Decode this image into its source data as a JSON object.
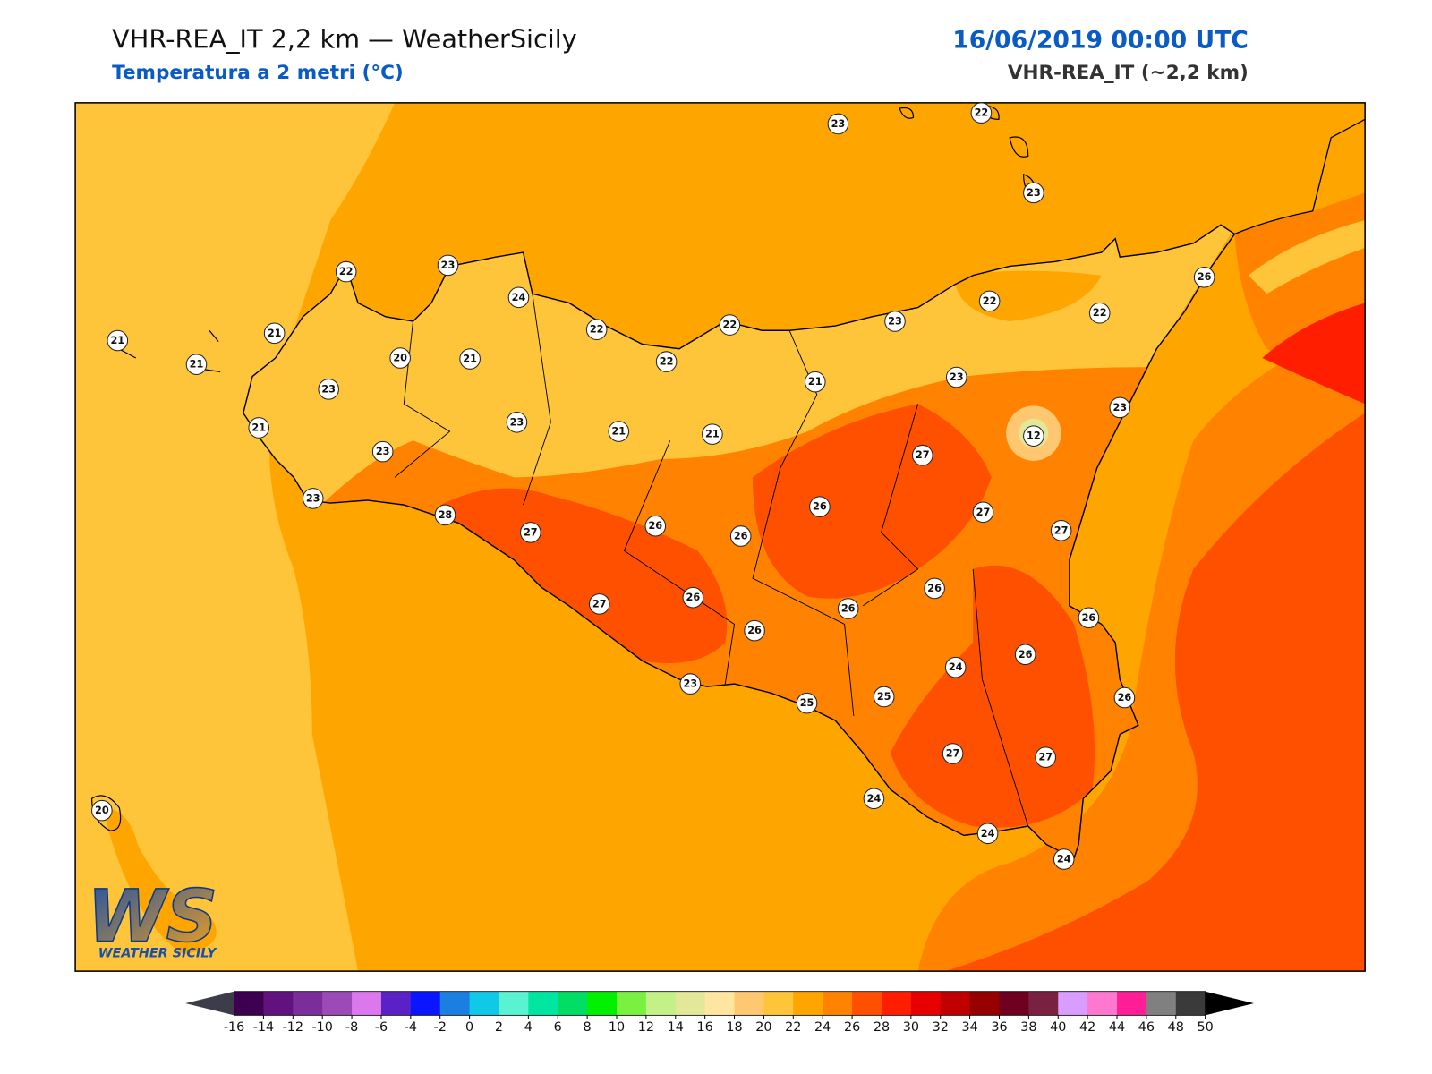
{
  "header": {
    "title": "VHR-REA_IT 2,2 km — WeatherSicily",
    "subtitle": "Temperatura a 2 metri (°C)",
    "datetime": "16/06/2019 00:00 UTC",
    "model": "VHR-REA_IT (~2,2 km)"
  },
  "stations": [
    23,
    22,
    23,
    22,
    23,
    24,
    26,
    21,
    21,
    21,
    20,
    21,
    22,
    22,
    23,
    22,
    22,
    22,
    21,
    23,
    23,
    23,
    21,
    23,
    21,
    21,
    12,
    23,
    27,
    23,
    26,
    27,
    28,
    27,
    26,
    26,
    27,
    26,
    27,
    26,
    26,
    26,
    26,
    26,
    24,
    23,
    25,
    25,
    26,
    27,
    27,
    24,
    20,
    24,
    24
  ],
  "colorbar": {
    "ticks": [
      -16,
      -14,
      -12,
      -10,
      -8,
      -6,
      -4,
      -2,
      0,
      2,
      4,
      6,
      8,
      10,
      12,
      14,
      16,
      18,
      20,
      22,
      24,
      26,
      28,
      30,
      32,
      34,
      36,
      38,
      40,
      42,
      44,
      46,
      48,
      50
    ],
    "colors": [
      "#3d0050",
      "#62127f",
      "#7b2e9b",
      "#9b4ab8",
      "#dd77ee",
      "#5a22c6",
      "#0a16ff",
      "#1a7fe0",
      "#10c8e8",
      "#5af2d0",
      "#00e6a0",
      "#00dc64",
      "#00f000",
      "#7af040",
      "#c4f088",
      "#e2e898",
      "#ffe6a0",
      "#ffc870",
      "#ffc53a",
      "#ffa500",
      "#ff8200",
      "#ff5000",
      "#ff1e00",
      "#e60000",
      "#c00000",
      "#960000",
      "#700020",
      "#7a2040",
      "#d99cff",
      "#ff78d0",
      "#ff1e96",
      "#808080",
      "#3a3a3a"
    ],
    "under_color": "#3c3c4a",
    "over_color": "#000000"
  },
  "logo": {
    "mark": "WS",
    "name": "WEATHER SICILY"
  }
}
